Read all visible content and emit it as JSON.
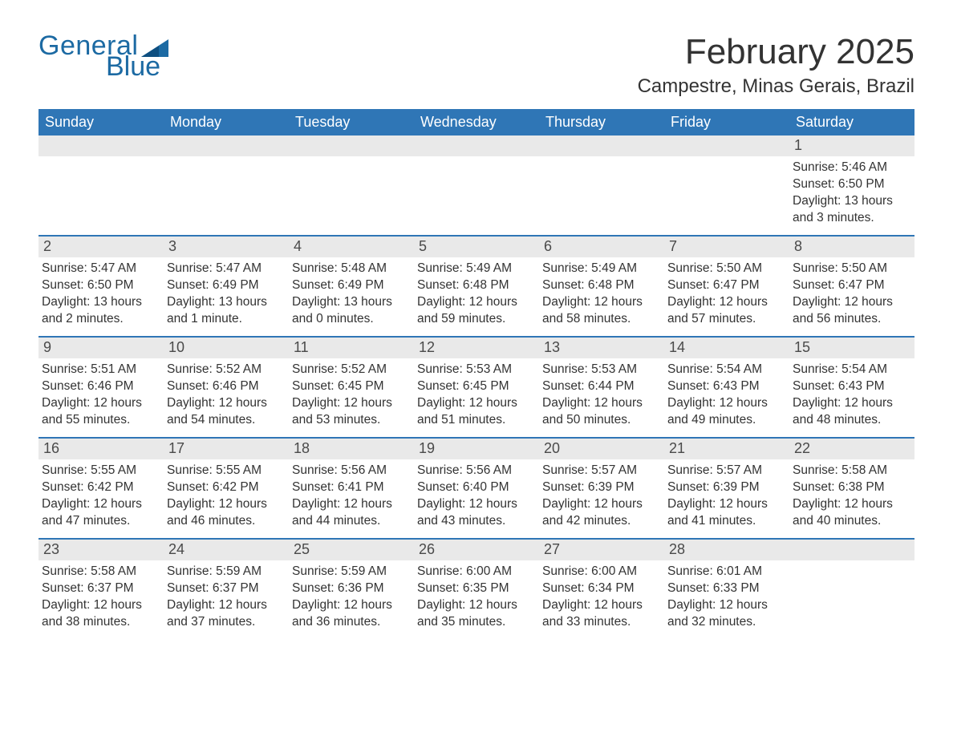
{
  "brand": {
    "general": "General",
    "blue": "Blue"
  },
  "title": "February 2025",
  "location": "Campestre, Minas Gerais, Brazil",
  "colors": {
    "header_bg": "#2f76b6",
    "header_text": "#ffffff",
    "date_bar_bg": "#e9e9e9",
    "week_border": "#2f76b6",
    "body_text": "#333333",
    "brand": "#1c6aa3",
    "page_bg": "#ffffff"
  },
  "weekdays": [
    "Sunday",
    "Monday",
    "Tuesday",
    "Wednesday",
    "Thursday",
    "Friday",
    "Saturday"
  ],
  "labels": {
    "sunrise": "Sunrise",
    "sunset": "Sunset",
    "daylight": "Daylight"
  },
  "weeks": [
    [
      null,
      null,
      null,
      null,
      null,
      null,
      {
        "d": "1",
        "sr": "5:46 AM",
        "ss": "6:50 PM",
        "dl": "13 hours and 3 minutes."
      }
    ],
    [
      {
        "d": "2",
        "sr": "5:47 AM",
        "ss": "6:50 PM",
        "dl": "13 hours and 2 minutes."
      },
      {
        "d": "3",
        "sr": "5:47 AM",
        "ss": "6:49 PM",
        "dl": "13 hours and 1 minute."
      },
      {
        "d": "4",
        "sr": "5:48 AM",
        "ss": "6:49 PM",
        "dl": "13 hours and 0 minutes."
      },
      {
        "d": "5",
        "sr": "5:49 AM",
        "ss": "6:48 PM",
        "dl": "12 hours and 59 minutes."
      },
      {
        "d": "6",
        "sr": "5:49 AM",
        "ss": "6:48 PM",
        "dl": "12 hours and 58 minutes."
      },
      {
        "d": "7",
        "sr": "5:50 AM",
        "ss": "6:47 PM",
        "dl": "12 hours and 57 minutes."
      },
      {
        "d": "8",
        "sr": "5:50 AM",
        "ss": "6:47 PM",
        "dl": "12 hours and 56 minutes."
      }
    ],
    [
      {
        "d": "9",
        "sr": "5:51 AM",
        "ss": "6:46 PM",
        "dl": "12 hours and 55 minutes."
      },
      {
        "d": "10",
        "sr": "5:52 AM",
        "ss": "6:46 PM",
        "dl": "12 hours and 54 minutes."
      },
      {
        "d": "11",
        "sr": "5:52 AM",
        "ss": "6:45 PM",
        "dl": "12 hours and 53 minutes."
      },
      {
        "d": "12",
        "sr": "5:53 AM",
        "ss": "6:45 PM",
        "dl": "12 hours and 51 minutes."
      },
      {
        "d": "13",
        "sr": "5:53 AM",
        "ss": "6:44 PM",
        "dl": "12 hours and 50 minutes."
      },
      {
        "d": "14",
        "sr": "5:54 AM",
        "ss": "6:43 PM",
        "dl": "12 hours and 49 minutes."
      },
      {
        "d": "15",
        "sr": "5:54 AM",
        "ss": "6:43 PM",
        "dl": "12 hours and 48 minutes."
      }
    ],
    [
      {
        "d": "16",
        "sr": "5:55 AM",
        "ss": "6:42 PM",
        "dl": "12 hours and 47 minutes."
      },
      {
        "d": "17",
        "sr": "5:55 AM",
        "ss": "6:42 PM",
        "dl": "12 hours and 46 minutes."
      },
      {
        "d": "18",
        "sr": "5:56 AM",
        "ss": "6:41 PM",
        "dl": "12 hours and 44 minutes."
      },
      {
        "d": "19",
        "sr": "5:56 AM",
        "ss": "6:40 PM",
        "dl": "12 hours and 43 minutes."
      },
      {
        "d": "20",
        "sr": "5:57 AM",
        "ss": "6:39 PM",
        "dl": "12 hours and 42 minutes."
      },
      {
        "d": "21",
        "sr": "5:57 AM",
        "ss": "6:39 PM",
        "dl": "12 hours and 41 minutes."
      },
      {
        "d": "22",
        "sr": "5:58 AM",
        "ss": "6:38 PM",
        "dl": "12 hours and 40 minutes."
      }
    ],
    [
      {
        "d": "23",
        "sr": "5:58 AM",
        "ss": "6:37 PM",
        "dl": "12 hours and 38 minutes."
      },
      {
        "d": "24",
        "sr": "5:59 AM",
        "ss": "6:37 PM",
        "dl": "12 hours and 37 minutes."
      },
      {
        "d": "25",
        "sr": "5:59 AM",
        "ss": "6:36 PM",
        "dl": "12 hours and 36 minutes."
      },
      {
        "d": "26",
        "sr": "6:00 AM",
        "ss": "6:35 PM",
        "dl": "12 hours and 35 minutes."
      },
      {
        "d": "27",
        "sr": "6:00 AM",
        "ss": "6:34 PM",
        "dl": "12 hours and 33 minutes."
      },
      {
        "d": "28",
        "sr": "6:01 AM",
        "ss": "6:33 PM",
        "dl": "12 hours and 32 minutes."
      },
      null
    ]
  ]
}
